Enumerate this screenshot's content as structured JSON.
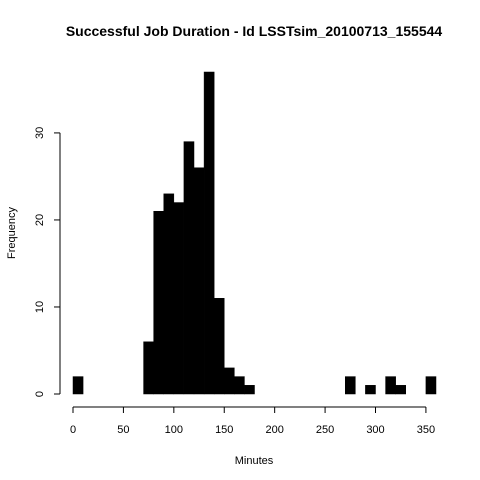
{
  "chart_data": {
    "type": "bar",
    "title": "Successful Job Duration - Id  LSSTsim_20100713_155544",
    "xlabel": "Minutes",
    "ylabel": "Frequency",
    "xlim": [
      0,
      360
    ],
    "ylim": [
      0,
      37
    ],
    "x_ticks": [
      0,
      50,
      100,
      150,
      200,
      250,
      300,
      350
    ],
    "y_ticks": [
      0,
      10,
      20,
      30
    ],
    "bin_width": 10,
    "bins": [
      {
        "x0": 0,
        "x1": 10,
        "count": 2
      },
      {
        "x0": 10,
        "x1": 20,
        "count": 0
      },
      {
        "x0": 20,
        "x1": 30,
        "count": 0
      },
      {
        "x0": 30,
        "x1": 40,
        "count": 0
      },
      {
        "x0": 40,
        "x1": 50,
        "count": 0
      },
      {
        "x0": 50,
        "x1": 60,
        "count": 0
      },
      {
        "x0": 60,
        "x1": 70,
        "count": 0
      },
      {
        "x0": 70,
        "x1": 80,
        "count": 6
      },
      {
        "x0": 80,
        "x1": 90,
        "count": 21
      },
      {
        "x0": 90,
        "x1": 100,
        "count": 23
      },
      {
        "x0": 100,
        "x1": 110,
        "count": 22
      },
      {
        "x0": 110,
        "x1": 120,
        "count": 29
      },
      {
        "x0": 120,
        "x1": 130,
        "count": 26
      },
      {
        "x0": 130,
        "x1": 140,
        "count": 37
      },
      {
        "x0": 140,
        "x1": 150,
        "count": 11
      },
      {
        "x0": 150,
        "x1": 160,
        "count": 3
      },
      {
        "x0": 160,
        "x1": 170,
        "count": 2
      },
      {
        "x0": 170,
        "x1": 180,
        "count": 1
      },
      {
        "x0": 180,
        "x1": 190,
        "count": 0
      },
      {
        "x0": 190,
        "x1": 200,
        "count": 0
      },
      {
        "x0": 200,
        "x1": 210,
        "count": 0
      },
      {
        "x0": 210,
        "x1": 220,
        "count": 0
      },
      {
        "x0": 220,
        "x1": 230,
        "count": 0
      },
      {
        "x0": 230,
        "x1": 240,
        "count": 0
      },
      {
        "x0": 240,
        "x1": 250,
        "count": 0
      },
      {
        "x0": 250,
        "x1": 260,
        "count": 0
      },
      {
        "x0": 260,
        "x1": 270,
        "count": 0
      },
      {
        "x0": 270,
        "x1": 280,
        "count": 2
      },
      {
        "x0": 280,
        "x1": 290,
        "count": 0
      },
      {
        "x0": 290,
        "x1": 300,
        "count": 1
      },
      {
        "x0": 300,
        "x1": 310,
        "count": 0
      },
      {
        "x0": 310,
        "x1": 320,
        "count": 2
      },
      {
        "x0": 320,
        "x1": 330,
        "count": 1
      },
      {
        "x0": 330,
        "x1": 340,
        "count": 0
      },
      {
        "x0": 340,
        "x1": 350,
        "count": 0
      },
      {
        "x0": 350,
        "x1": 360,
        "count": 2
      }
    ],
    "bar_color": "#000000",
    "grid": false
  }
}
